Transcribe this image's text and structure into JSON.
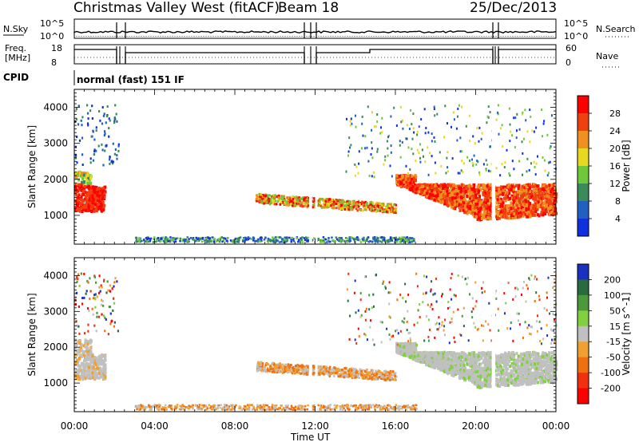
{
  "header": {
    "title": "Christmas Valley West (fitACF)",
    "beam": "Beam 18",
    "date": "25/Dec/2013"
  },
  "strip": {
    "nsky_label": "N.Sky",
    "nsearch_label": "N.Search",
    "nsky_ticks": [
      "10^5",
      "10^0"
    ],
    "nsearch_ticks": [
      "10^5",
      "10^0"
    ],
    "freq_label_1": "Freq.",
    "freq_label_2": "[MHz]",
    "freq_ticks": [
      "18",
      "8"
    ],
    "nave_label": "Nave",
    "nave_ticks": [
      "60",
      "0"
    ],
    "cpid_label": "CPID",
    "cpid_text": "normal (fast) 151 IF"
  },
  "chart_data": [
    {
      "type": "heatmap",
      "name": "power",
      "ylabel": "Slant Range [km]",
      "xlabel": "Time UT",
      "x_ticks": [
        "00:00",
        "04:00",
        "08:00",
        "12:00",
        "16:00",
        "20:00",
        "00:00"
      ],
      "x_range_hours": [
        0,
        24
      ],
      "y_ticks": [
        1000,
        2000,
        3000,
        4000
      ],
      "ylim": [
        200,
        4500
      ],
      "colorbar": {
        "label": "Power [dB]",
        "ticks": [
          "4",
          "8",
          "12",
          "16",
          "20",
          "24",
          "28"
        ],
        "colors": [
          "#1030e0",
          "#2060c0",
          "#3a8a5a",
          "#6dc83a",
          "#e8d820",
          "#f09020",
          "#f04010",
          "#ff0000"
        ]
      }
    },
    {
      "type": "heatmap",
      "name": "velocity",
      "ylabel": "Slant Range [km]",
      "xlabel": "Time UT",
      "x_ticks": [
        "00:00",
        "04:00",
        "08:00",
        "12:00",
        "16:00",
        "20:00",
        "00:00"
      ],
      "x_range_hours": [
        0,
        24
      ],
      "y_ticks": [
        1000,
        2000,
        3000,
        4000
      ],
      "ylim": [
        200,
        4500
      ],
      "colorbar": {
        "label": "Velocity [m s^-1]",
        "ticks": [
          "200",
          "100",
          "50",
          "15",
          "-15",
          "-50",
          "-100",
          "-200"
        ],
        "colors": [
          "#1a30c0",
          "#2a6a40",
          "#4a9a3a",
          "#80d040",
          "#c0c0c0",
          "#f0a030",
          "#f07010",
          "#f03010",
          "#ff0000"
        ]
      }
    }
  ],
  "colors": {
    "background": "#ffffff",
    "axis": "#000000"
  }
}
